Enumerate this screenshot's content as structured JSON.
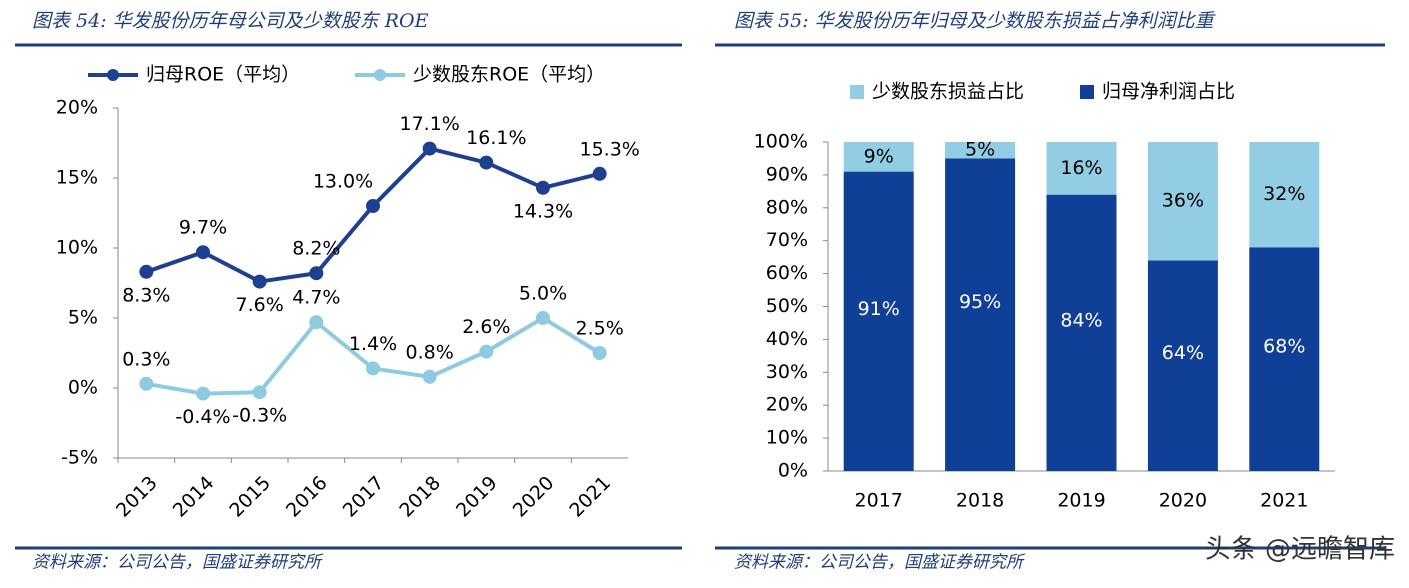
{
  "chart_data": [
    {
      "type": "line",
      "title": "图表 54:  华发股份历年母公司及少数股东 ROE",
      "source": "资料来源：公司公告，国盛证券研究所",
      "categories": [
        "2013",
        "2014",
        "2015",
        "2016",
        "2017",
        "2018",
        "2019",
        "2020",
        "2021"
      ],
      "series": [
        {
          "name": "归母ROE（平均）",
          "color": "#1f3f8f",
          "values": [
            8.3,
            9.7,
            7.6,
            8.2,
            13.0,
            17.1,
            16.1,
            14.3,
            15.3
          ],
          "value_labels": [
            "8.3%",
            "9.7%",
            "7.6%",
            "8.2%",
            "13.0%",
            "17.1%",
            "16.1%",
            "14.3%",
            "15.3%"
          ]
        },
        {
          "name": "少数股东ROE（平均）",
          "color": "#8fcbe0",
          "values": [
            0.3,
            -0.4,
            -0.3,
            4.7,
            1.4,
            0.8,
            2.6,
            5.0,
            2.5
          ],
          "value_labels": [
            "0.3%",
            "-0.4%",
            "-0.3%",
            "4.7%",
            "1.4%",
            "0.8%",
            "2.6%",
            "5.0%",
            "2.5%"
          ]
        }
      ],
      "ylim": [
        -5,
        20
      ],
      "yticks": [
        {
          "value": -5,
          "label": "-5%"
        },
        {
          "value": 0,
          "label": "0%"
        },
        {
          "value": 5,
          "label": "5%"
        },
        {
          "value": 10,
          "label": "10%"
        },
        {
          "value": 15,
          "label": "15%"
        },
        {
          "value": 20,
          "label": "20%"
        }
      ]
    },
    {
      "type": "stacked_bar",
      "title": "图表 55:  华发股份历年归母及少数股东损益占净利润比重",
      "source": "资料来源：公司公告，国盛证券研究所",
      "categories": [
        "2017",
        "2018",
        "2019",
        "2020",
        "2021"
      ],
      "series": [
        {
          "name": "少数股东损益占比",
          "color": "#92cde3",
          "values": [
            9,
            5,
            16,
            36,
            32
          ],
          "value_labels": [
            "9%",
            "5%",
            "16%",
            "36%",
            "32%"
          ]
        },
        {
          "name": "归母净利润占比",
          "color": "#0f3f96",
          "values": [
            91,
            95,
            84,
            64,
            68
          ],
          "value_labels": [
            "91%",
            "95%",
            "84%",
            "64%",
            "68%"
          ]
        }
      ],
      "ylim": [
        0,
        100
      ],
      "yticks": [
        {
          "value": 0,
          "label": "0%"
        },
        {
          "value": 10,
          "label": "10%"
        },
        {
          "value": 20,
          "label": "20%"
        },
        {
          "value": 30,
          "label": "30%"
        },
        {
          "value": 40,
          "label": "40%"
        },
        {
          "value": 50,
          "label": "50%"
        },
        {
          "value": 60,
          "label": "60%"
        },
        {
          "value": 70,
          "label": "70%"
        },
        {
          "value": 80,
          "label": "80%"
        },
        {
          "value": 90,
          "label": "90%"
        },
        {
          "value": 100,
          "label": "100%"
        }
      ]
    }
  ],
  "watermark": "头条 @远瞻智库"
}
